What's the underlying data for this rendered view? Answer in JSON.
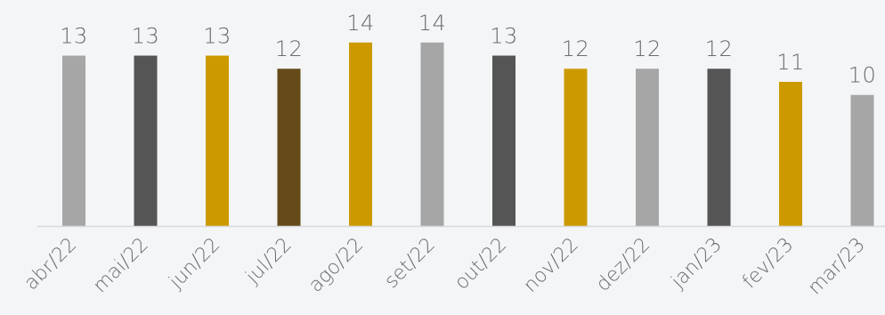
{
  "chart_data": {
    "type": "bar",
    "title": "",
    "xlabel": "",
    "ylabel": "",
    "ylim": [
      0,
      14.8
    ],
    "grid": false,
    "legend": "none",
    "categories": [
      "abr/22",
      "mai/22",
      "jun/22",
      "jul/22",
      "ago/22",
      "set/22",
      "out/22",
      "nov/22",
      "dez/22",
      "jan/23",
      "fev/23",
      "mar/23"
    ],
    "values": [
      13,
      13,
      13,
      12,
      14,
      14,
      13,
      12,
      12,
      12,
      11,
      10
    ],
    "bar_colors": [
      "#a6a6a6",
      "#555555",
      "#cc9a00",
      "#654b19",
      "#cc9a00",
      "#a6a6a6",
      "#555555",
      "#cc9a00",
      "#a6a6a6",
      "#555555",
      "#cc9a00",
      "#a6a6a6"
    ],
    "axis_color": "#d9d9d9",
    "label_color": "#6b6b6b"
  }
}
